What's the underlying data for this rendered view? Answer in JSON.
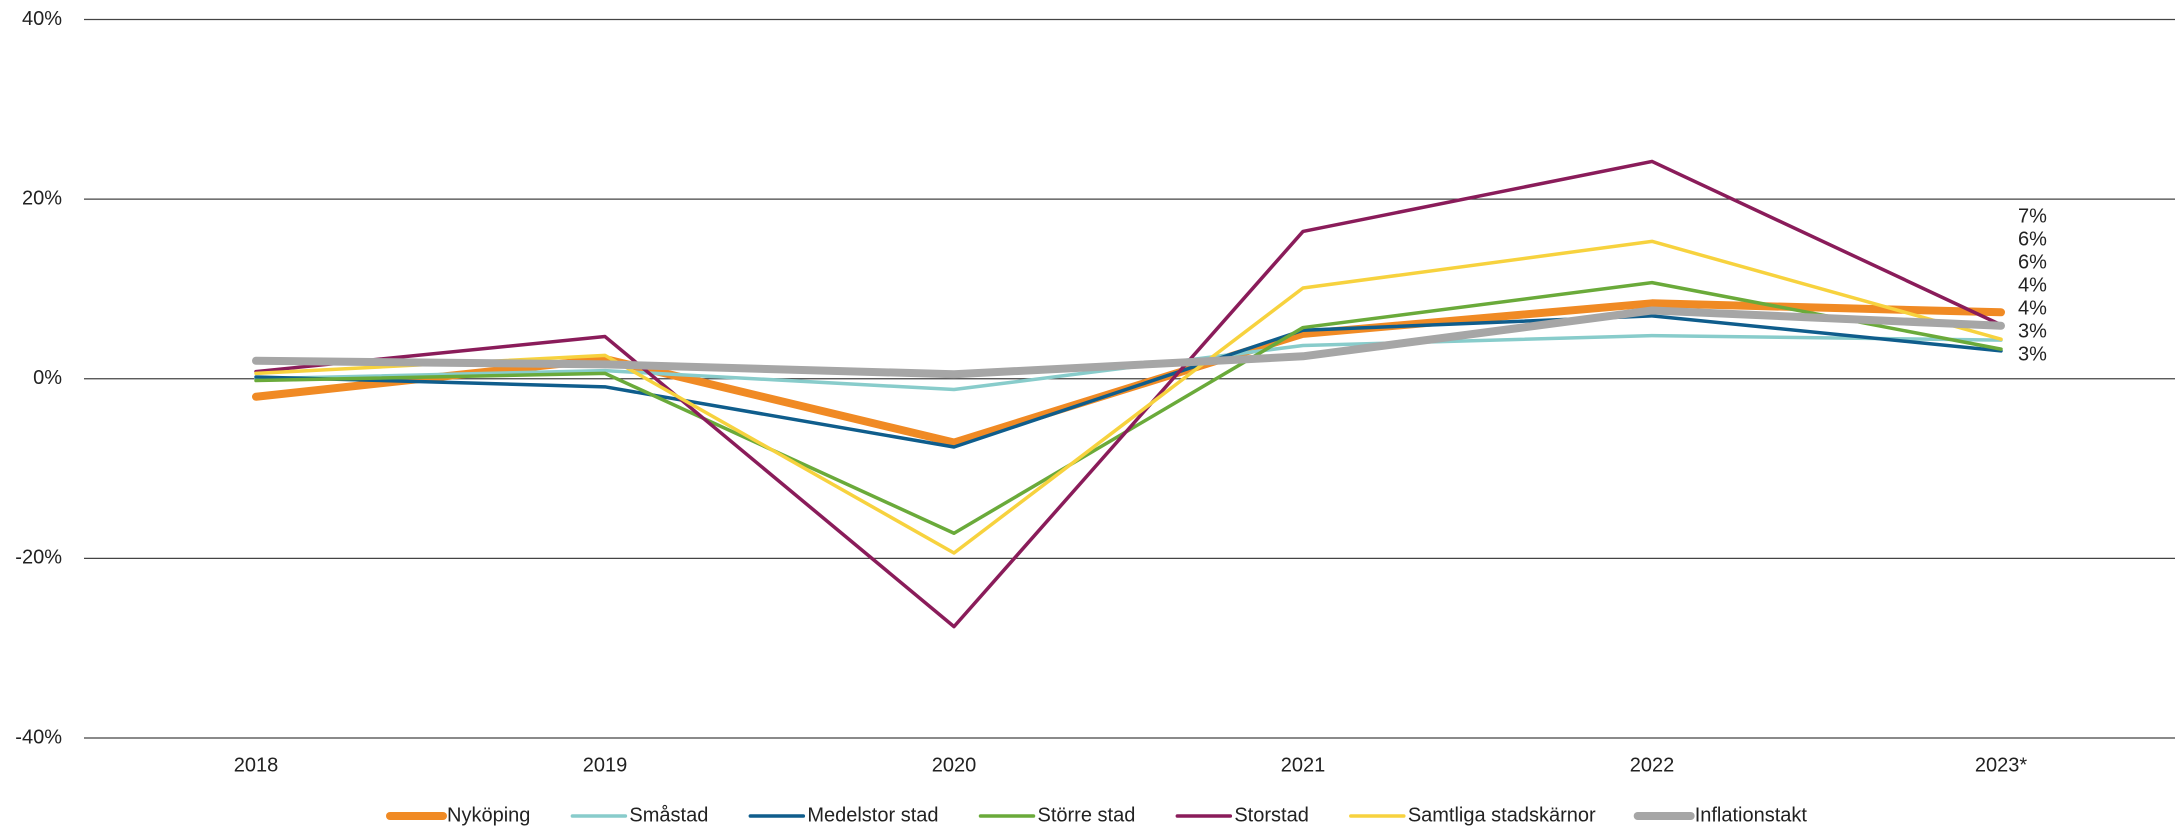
{
  "chart_data": {
    "type": "line",
    "categories": [
      "2018",
      "2019",
      "2020",
      "2021",
      "2022",
      "2023*"
    ],
    "ylim": [
      -40,
      40
    ],
    "yticks": [
      {
        "value": -40,
        "label": "-40%"
      },
      {
        "value": -20,
        "label": "-20%"
      },
      {
        "value": 0,
        "label": "0%"
      },
      {
        "value": 20,
        "label": "20%"
      },
      {
        "value": 40,
        "label": "40%"
      }
    ],
    "grid": true,
    "legend": "bottom",
    "series": [
      {
        "name": "Nyköping",
        "color": "#f08a24",
        "width": 8,
        "values": [
          -2.0,
          2.2,
          -7.1,
          5.0,
          8.4,
          7.4
        ],
        "end_label": "7%"
      },
      {
        "name": "Småstad",
        "color": "#88cccb",
        "width": 3.5,
        "values": [
          0.0,
          0.9,
          -1.2,
          3.7,
          4.8,
          4.3
        ],
        "end_label": "4%"
      },
      {
        "name": "Medelstor stad",
        "color": "#0f5d8c",
        "width": 3.5,
        "values": [
          0.2,
          -0.9,
          -7.6,
          5.4,
          7.0,
          3.1
        ],
        "end_label": "3%"
      },
      {
        "name": "Större stad",
        "color": "#6aaa3a",
        "width": 3.5,
        "values": [
          -0.2,
          0.6,
          -17.2,
          5.7,
          10.7,
          3.3
        ],
        "end_label": "3%"
      },
      {
        "name": "Storstad",
        "color": "#8a1c5a",
        "width": 3.5,
        "values": [
          0.8,
          4.7,
          -27.6,
          16.4,
          24.2,
          6.0
        ],
        "end_label": "6%"
      },
      {
        "name": "Samtliga stadskärnor",
        "color": "#f7d23e",
        "width": 3.5,
        "values": [
          0.6,
          2.6,
          -19.4,
          10.1,
          15.3,
          4.4
        ],
        "end_label": "4%"
      },
      {
        "name": "Inflationstakt",
        "color": "#a6a6a6",
        "width": 8,
        "values": [
          2.0,
          1.6,
          0.5,
          2.5,
          7.6,
          5.9
        ],
        "end_label": "6%"
      }
    ]
  }
}
